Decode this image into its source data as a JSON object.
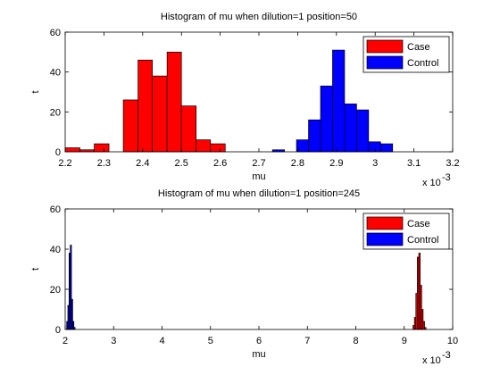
{
  "chart_data": [
    {
      "type": "bar",
      "title": "Histogram of mu when dilution=1 position=50",
      "xlabel": "mu",
      "ylabel": "t",
      "xlim": [
        0.0022,
        0.0032
      ],
      "ylim": [
        0,
        60
      ],
      "x_scale_label": "x 10",
      "x_scale_exp": "-3",
      "x_ticks": [
        0.0022,
        0.0023,
        0.0024,
        0.0025,
        0.0026,
        0.0027,
        0.0028,
        0.0029,
        0.003,
        0.0031,
        0.0032
      ],
      "x_tick_labels": [
        "2.2",
        "2.3",
        "2.4",
        "2.5",
        "2.6",
        "2.7",
        "2.8",
        "2.9",
        "3",
        "3.1",
        "3.2"
      ],
      "y_ticks": [
        0,
        20,
        40,
        60
      ],
      "y_tick_labels": [
        "0",
        "20",
        "40",
        "60"
      ],
      "legend": {
        "position": "top-right"
      },
      "series": [
        {
          "name": "Case",
          "color": "#ff0000",
          "bins": [
            {
              "start": 0.0022,
              "end": 0.002238,
              "count": 2
            },
            {
              "start": 0.002238,
              "end": 0.002275,
              "count": 1
            },
            {
              "start": 0.002275,
              "end": 0.002313,
              "count": 4
            },
            {
              "start": 0.002313,
              "end": 0.00235,
              "count": 0
            },
            {
              "start": 0.00235,
              "end": 0.002388,
              "count": 26
            },
            {
              "start": 0.002388,
              "end": 0.002425,
              "count": 46
            },
            {
              "start": 0.002425,
              "end": 0.002463,
              "count": 38
            },
            {
              "start": 0.002463,
              "end": 0.0025,
              "count": 50
            },
            {
              "start": 0.0025,
              "end": 0.002538,
              "count": 23
            },
            {
              "start": 0.002538,
              "end": 0.002575,
              "count": 6
            },
            {
              "start": 0.002575,
              "end": 0.002613,
              "count": 4
            }
          ]
        },
        {
          "name": "Control",
          "color": "#0000ff",
          "bins": [
            {
              "start": 0.002735,
              "end": 0.002766,
              "count": 1
            },
            {
              "start": 0.002797,
              "end": 0.002828,
              "count": 6
            },
            {
              "start": 0.002828,
              "end": 0.002859,
              "count": 16
            },
            {
              "start": 0.002859,
              "end": 0.00289,
              "count": 33
            },
            {
              "start": 0.00289,
              "end": 0.002921,
              "count": 51
            },
            {
              "start": 0.002921,
              "end": 0.002952,
              "count": 24
            },
            {
              "start": 0.002952,
              "end": 0.002983,
              "count": 21
            },
            {
              "start": 0.002983,
              "end": 0.003014,
              "count": 5
            },
            {
              "start": 0.003014,
              "end": 0.003045,
              "count": 4
            }
          ]
        }
      ]
    },
    {
      "type": "bar",
      "title": "Histogram of mu when dilution=1 position=245",
      "xlabel": "mu",
      "ylabel": "t",
      "xlim": [
        0.002,
        0.01
      ],
      "ylim": [
        0,
        60
      ],
      "x_scale_label": "x 10",
      "x_scale_exp": "-3",
      "x_ticks": [
        0.002,
        0.003,
        0.004,
        0.005,
        0.006,
        0.007,
        0.008,
        0.009,
        0.01
      ],
      "x_tick_labels": [
        "2",
        "3",
        "4",
        "5",
        "6",
        "7",
        "8",
        "9",
        "10"
      ],
      "y_ticks": [
        0,
        20,
        40,
        60
      ],
      "y_tick_labels": [
        "0",
        "20",
        "40",
        "60"
      ],
      "legend": {
        "position": "top-right"
      },
      "series": [
        {
          "name": "Case",
          "color": "#ff0000",
          "bins": [
            {
              "start": 0.00918,
              "end": 0.00921,
              "count": 2
            },
            {
              "start": 0.00921,
              "end": 0.00924,
              "count": 6
            },
            {
              "start": 0.00924,
              "end": 0.00927,
              "count": 18
            },
            {
              "start": 0.00927,
              "end": 0.0093,
              "count": 36
            },
            {
              "start": 0.0093,
              "end": 0.00933,
              "count": 38
            },
            {
              "start": 0.00933,
              "end": 0.00936,
              "count": 22
            },
            {
              "start": 0.00936,
              "end": 0.00939,
              "count": 10
            },
            {
              "start": 0.00939,
              "end": 0.00942,
              "count": 4
            },
            {
              "start": 0.00942,
              "end": 0.00945,
              "count": 1
            }
          ]
        },
        {
          "name": "Control",
          "color": "#0000ff",
          "bins": [
            {
              "start": 0.00203,
              "end": 0.002055,
              "count": 4
            },
            {
              "start": 0.002055,
              "end": 0.00208,
              "count": 12
            },
            {
              "start": 0.00208,
              "end": 0.002105,
              "count": 38
            },
            {
              "start": 0.002105,
              "end": 0.00213,
              "count": 42
            },
            {
              "start": 0.00213,
              "end": 0.002155,
              "count": 15
            },
            {
              "start": 0.002155,
              "end": 0.00218,
              "count": 4
            },
            {
              "start": 0.00218,
              "end": 0.002205,
              "count": 1
            }
          ]
        }
      ]
    }
  ]
}
